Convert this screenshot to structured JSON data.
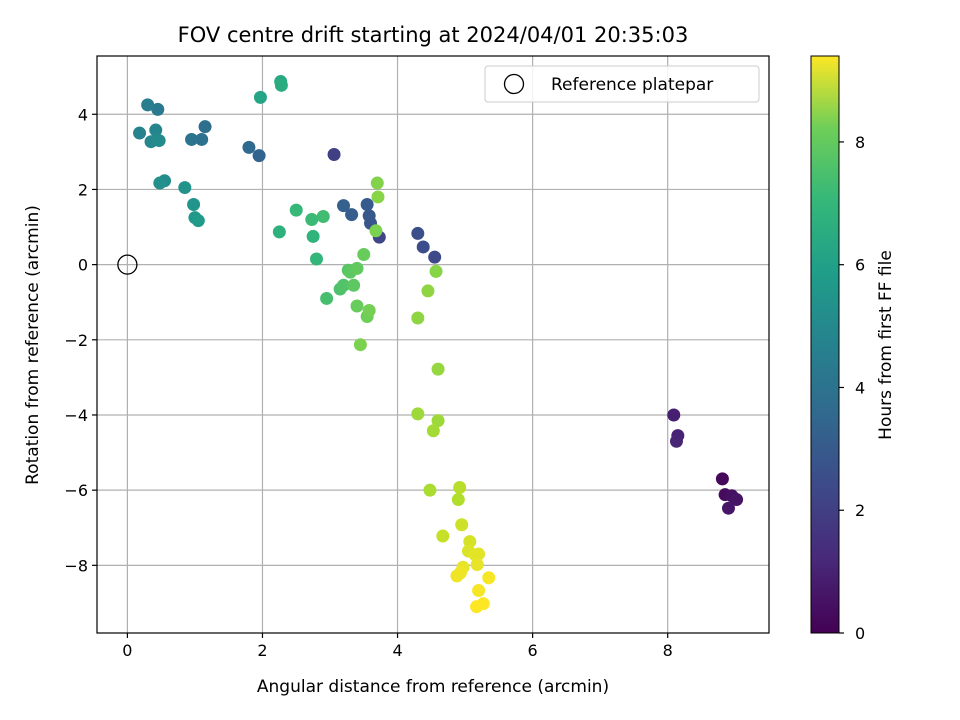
{
  "chart_data": {
    "type": "scatter",
    "title": "FOV centre drift starting at 2024/04/01 20:35:03",
    "xlabel": "Angular distance from reference (arcmin)",
    "ylabel": "Rotation from reference (arcmin)",
    "xlim": [
      -0.45,
      9.5
    ],
    "ylim": [
      -9.8,
      5.55
    ],
    "xticks": [
      0,
      2,
      4,
      6,
      8
    ],
    "yticks": [
      -8,
      -6,
      -4,
      -2,
      0,
      2,
      4
    ],
    "x_tick_labels": [
      "0",
      "2",
      "4",
      "6",
      "8"
    ],
    "y_tick_labels": [
      "−8",
      "−6",
      "−4",
      "−2",
      "0",
      "2",
      "4"
    ],
    "grid": true,
    "legend": {
      "placement": "upper right",
      "entries": [
        "Reference platepar"
      ]
    },
    "reference_point": {
      "x": 0,
      "y": 0,
      "label": "Reference platepar",
      "marker": "open-circle"
    },
    "colorbar": {
      "label": "Hours from first FF file",
      "colormap": "viridis",
      "range": [
        0,
        9.4
      ],
      "ticks": [
        0,
        2,
        4,
        6,
        8
      ],
      "tick_labels": [
        "0",
        "2",
        "4",
        "6",
        "8"
      ]
    },
    "series": [
      {
        "points": [
          [
            8.81,
            -5.7,
            0.2
          ],
          [
            8.85,
            -6.12,
            0.3
          ],
          [
            8.95,
            -6.15,
            0.4
          ],
          [
            9.02,
            -6.25,
            0.5
          ],
          [
            8.9,
            -6.48,
            0.6
          ],
          [
            8.09,
            -4.0,
            0.8
          ],
          [
            8.15,
            -4.55,
            0.9
          ],
          [
            8.13,
            -4.7,
            1.0
          ],
          [
            3.06,
            2.93,
            1.8
          ],
          [
            3.73,
            0.73,
            2.0
          ],
          [
            4.55,
            0.2,
            2.1
          ],
          [
            4.38,
            0.47,
            2.2
          ],
          [
            4.3,
            0.83,
            2.3
          ],
          [
            3.6,
            1.1,
            2.5
          ],
          [
            3.58,
            1.3,
            2.6
          ],
          [
            3.55,
            1.6,
            2.7
          ],
          [
            3.32,
            1.33,
            2.8
          ],
          [
            3.2,
            1.57,
            2.9
          ],
          [
            1.95,
            2.9,
            3.0
          ],
          [
            1.8,
            3.12,
            3.2
          ],
          [
            1.15,
            3.67,
            3.4
          ],
          [
            1.1,
            3.33,
            3.5
          ],
          [
            0.95,
            3.33,
            3.6
          ],
          [
            0.45,
            4.13,
            3.8
          ],
          [
            0.3,
            4.25,
            4.0
          ],
          [
            0.18,
            3.5,
            4.2
          ],
          [
            0.42,
            3.58,
            4.3
          ],
          [
            0.35,
            3.27,
            4.4
          ],
          [
            0.47,
            3.3,
            4.5
          ],
          [
            0.55,
            2.23,
            4.6
          ],
          [
            0.48,
            2.17,
            4.7
          ],
          [
            0.85,
            2.05,
            4.8
          ],
          [
            0.98,
            1.6,
            4.9
          ],
          [
            1.0,
            1.25,
            5.0
          ],
          [
            1.05,
            1.17,
            5.1
          ],
          [
            1.97,
            4.45,
            5.5
          ],
          [
            2.27,
            4.87,
            5.7
          ],
          [
            2.28,
            4.77,
            5.8
          ],
          [
            2.25,
            0.87,
            6.0
          ],
          [
            2.75,
            0.75,
            6.1
          ],
          [
            2.8,
            0.15,
            6.2
          ],
          [
            2.5,
            1.45,
            6.3
          ],
          [
            2.73,
            1.2,
            6.4
          ],
          [
            2.9,
            1.28,
            6.5
          ],
          [
            2.95,
            -0.9,
            6.6
          ],
          [
            3.15,
            -0.65,
            6.7
          ],
          [
            3.2,
            -0.55,
            6.8
          ],
          [
            3.27,
            -0.15,
            6.9
          ],
          [
            3.3,
            -0.2,
            7.0
          ],
          [
            3.35,
            -0.55,
            7.0
          ],
          [
            3.4,
            -0.1,
            7.1
          ],
          [
            3.4,
            -1.1,
            7.2
          ],
          [
            3.5,
            0.27,
            7.2
          ],
          [
            3.55,
            -1.38,
            7.3
          ],
          [
            3.58,
            -1.22,
            7.4
          ],
          [
            3.45,
            -2.13,
            7.5
          ],
          [
            3.68,
            0.9,
            7.5
          ],
          [
            3.7,
            2.17,
            7.6
          ],
          [
            3.71,
            1.8,
            7.7
          ],
          [
            4.57,
            -0.18,
            7.7
          ],
          [
            4.45,
            -0.7,
            7.8
          ],
          [
            4.3,
            -1.42,
            7.8
          ],
          [
            4.6,
            -2.78,
            7.9
          ],
          [
            4.3,
            -3.97,
            8.0
          ],
          [
            4.6,
            -4.15,
            8.0
          ],
          [
            4.53,
            -4.42,
            8.1
          ],
          [
            4.48,
            -6.0,
            8.2
          ],
          [
            4.9,
            -6.25,
            8.3
          ],
          [
            4.92,
            -5.93,
            8.4
          ],
          [
            4.67,
            -7.22,
            8.6
          ],
          [
            4.95,
            -6.92,
            8.7
          ],
          [
            5.07,
            -7.37,
            8.8
          ],
          [
            5.05,
            -7.62,
            8.9
          ],
          [
            5.15,
            -7.72,
            9.0
          ],
          [
            5.2,
            -7.7,
            9.0
          ],
          [
            5.18,
            -7.98,
            9.1
          ],
          [
            4.97,
            -8.05,
            9.1
          ],
          [
            4.93,
            -8.2,
            9.2
          ],
          [
            4.88,
            -8.28,
            9.2
          ],
          [
            5.2,
            -8.67,
            9.3
          ],
          [
            5.35,
            -8.33,
            9.3
          ],
          [
            5.27,
            -9.02,
            9.4
          ],
          [
            5.17,
            -9.1,
            9.4
          ]
        ]
      }
    ]
  }
}
